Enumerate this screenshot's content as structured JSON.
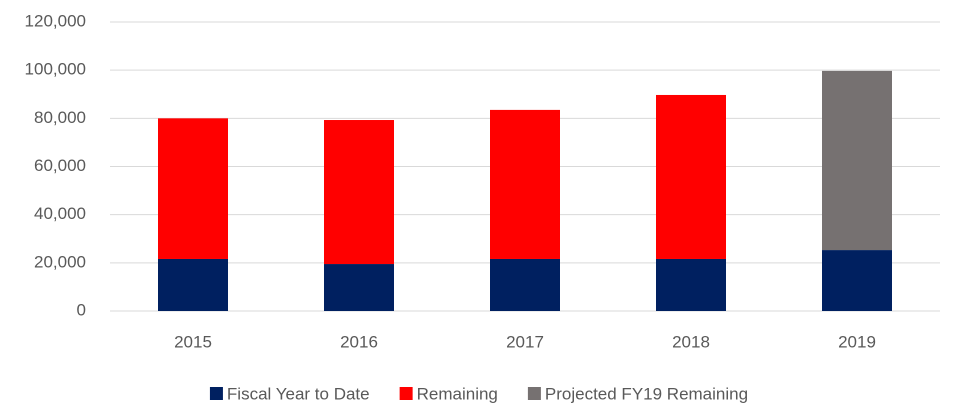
{
  "chart_data": {
    "type": "stacked_bar",
    "categories": [
      "2015",
      "2016",
      "2017",
      "2018",
      "2019"
    ],
    "series": [
      {
        "name": "Fiscal Year to Date",
        "color": "#002060",
        "values": [
          21600,
          19500,
          21600,
          21600,
          25300
        ]
      },
      {
        "name": "Remaining",
        "color": "#ff0000",
        "values": [
          58400,
          59800,
          61900,
          68100,
          null
        ]
      },
      {
        "name": "Projected FY19 Remaining",
        "color": "#767171",
        "values": [
          null,
          null,
          null,
          null,
          74400
        ]
      }
    ],
    "ylim": [
      0,
      120000
    ],
    "yticks": [
      0,
      {
        "value": 20000,
        "label": "20,000"
      },
      {
        "value": 40000,
        "label": "40,000"
      },
      {
        "value": 60000,
        "label": "60,000"
      },
      {
        "value": 80000,
        "label": "80,000"
      },
      {
        "value": 100000,
        "label": "100,000"
      },
      {
        "value": 120000,
        "label": "120,000"
      }
    ],
    "grid": true,
    "legend": "bottom"
  }
}
